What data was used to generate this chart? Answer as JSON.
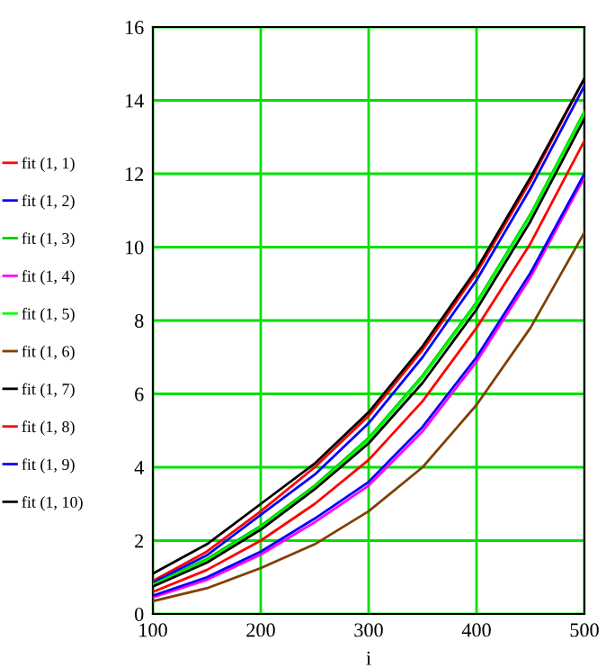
{
  "chart_data": {
    "type": "line",
    "xlabel": "i",
    "x": [
      100,
      150,
      200,
      250,
      300,
      350,
      400,
      450,
      500
    ],
    "series": [
      {
        "name": "fit (1, 1)",
        "color": "#ff0000",
        "values": [
          0.9,
          1.7,
          2.8,
          4.0,
          5.4,
          7.2,
          9.3,
          11.8,
          14.6
        ]
      },
      {
        "name": "fit (1, 2)",
        "color": "#0000ff",
        "values": [
          0.85,
          1.6,
          2.7,
          3.8,
          5.2,
          7.0,
          9.1,
          11.6,
          14.4
        ]
      },
      {
        "name": "fit (1, 3)",
        "color": "#00cc00",
        "values": [
          0.8,
          1.5,
          2.4,
          3.5,
          4.8,
          6.5,
          8.5,
          10.9,
          13.7
        ]
      },
      {
        "name": "fit (1, 4)",
        "color": "#ff00ff",
        "values": [
          0.45,
          0.93,
          1.62,
          2.5,
          3.5,
          4.98,
          6.88,
          9.18,
          11.9
        ]
      },
      {
        "name": "fit (1, 5)",
        "color": "#00ff00",
        "values": [
          0.78,
          1.45,
          2.35,
          3.45,
          4.75,
          6.45,
          8.45,
          10.85,
          13.65
        ]
      },
      {
        "name": "fit (1, 6)",
        "color": "#804000",
        "values": [
          0.35,
          0.7,
          1.25,
          1.9,
          2.8,
          4.0,
          5.7,
          7.8,
          10.4
        ]
      },
      {
        "name": "fit (1, 7)",
        "color": "#000000",
        "values": [
          1.1,
          1.9,
          3.0,
          4.1,
          5.5,
          7.3,
          9.4,
          11.9,
          14.6
        ]
      },
      {
        "name": "fit (1, 8)",
        "color": "#ff0000",
        "values": [
          0.6,
          1.2,
          2.0,
          3.0,
          4.2,
          5.8,
          7.8,
          10.1,
          12.9
        ]
      },
      {
        "name": "fit (1, 9)",
        "color": "#0000ff",
        "values": [
          0.5,
          1.0,
          1.7,
          2.6,
          3.6,
          5.1,
          7.0,
          9.3,
          12.0
        ]
      },
      {
        "name": "fit (1, 10)",
        "color": "#000000",
        "values": [
          0.75,
          1.4,
          2.3,
          3.4,
          4.65,
          6.3,
          8.3,
          10.7,
          13.5
        ]
      }
    ],
    "xlim": [
      100,
      500
    ],
    "xticks": [
      100,
      200,
      300,
      400,
      500
    ],
    "ylim": [
      0,
      16
    ],
    "yticks": [
      0,
      2,
      4,
      6,
      8,
      10,
      12,
      14,
      16
    ],
    "grid": true,
    "legend": "left",
    "line_style": "solid",
    "marker": "none"
  }
}
